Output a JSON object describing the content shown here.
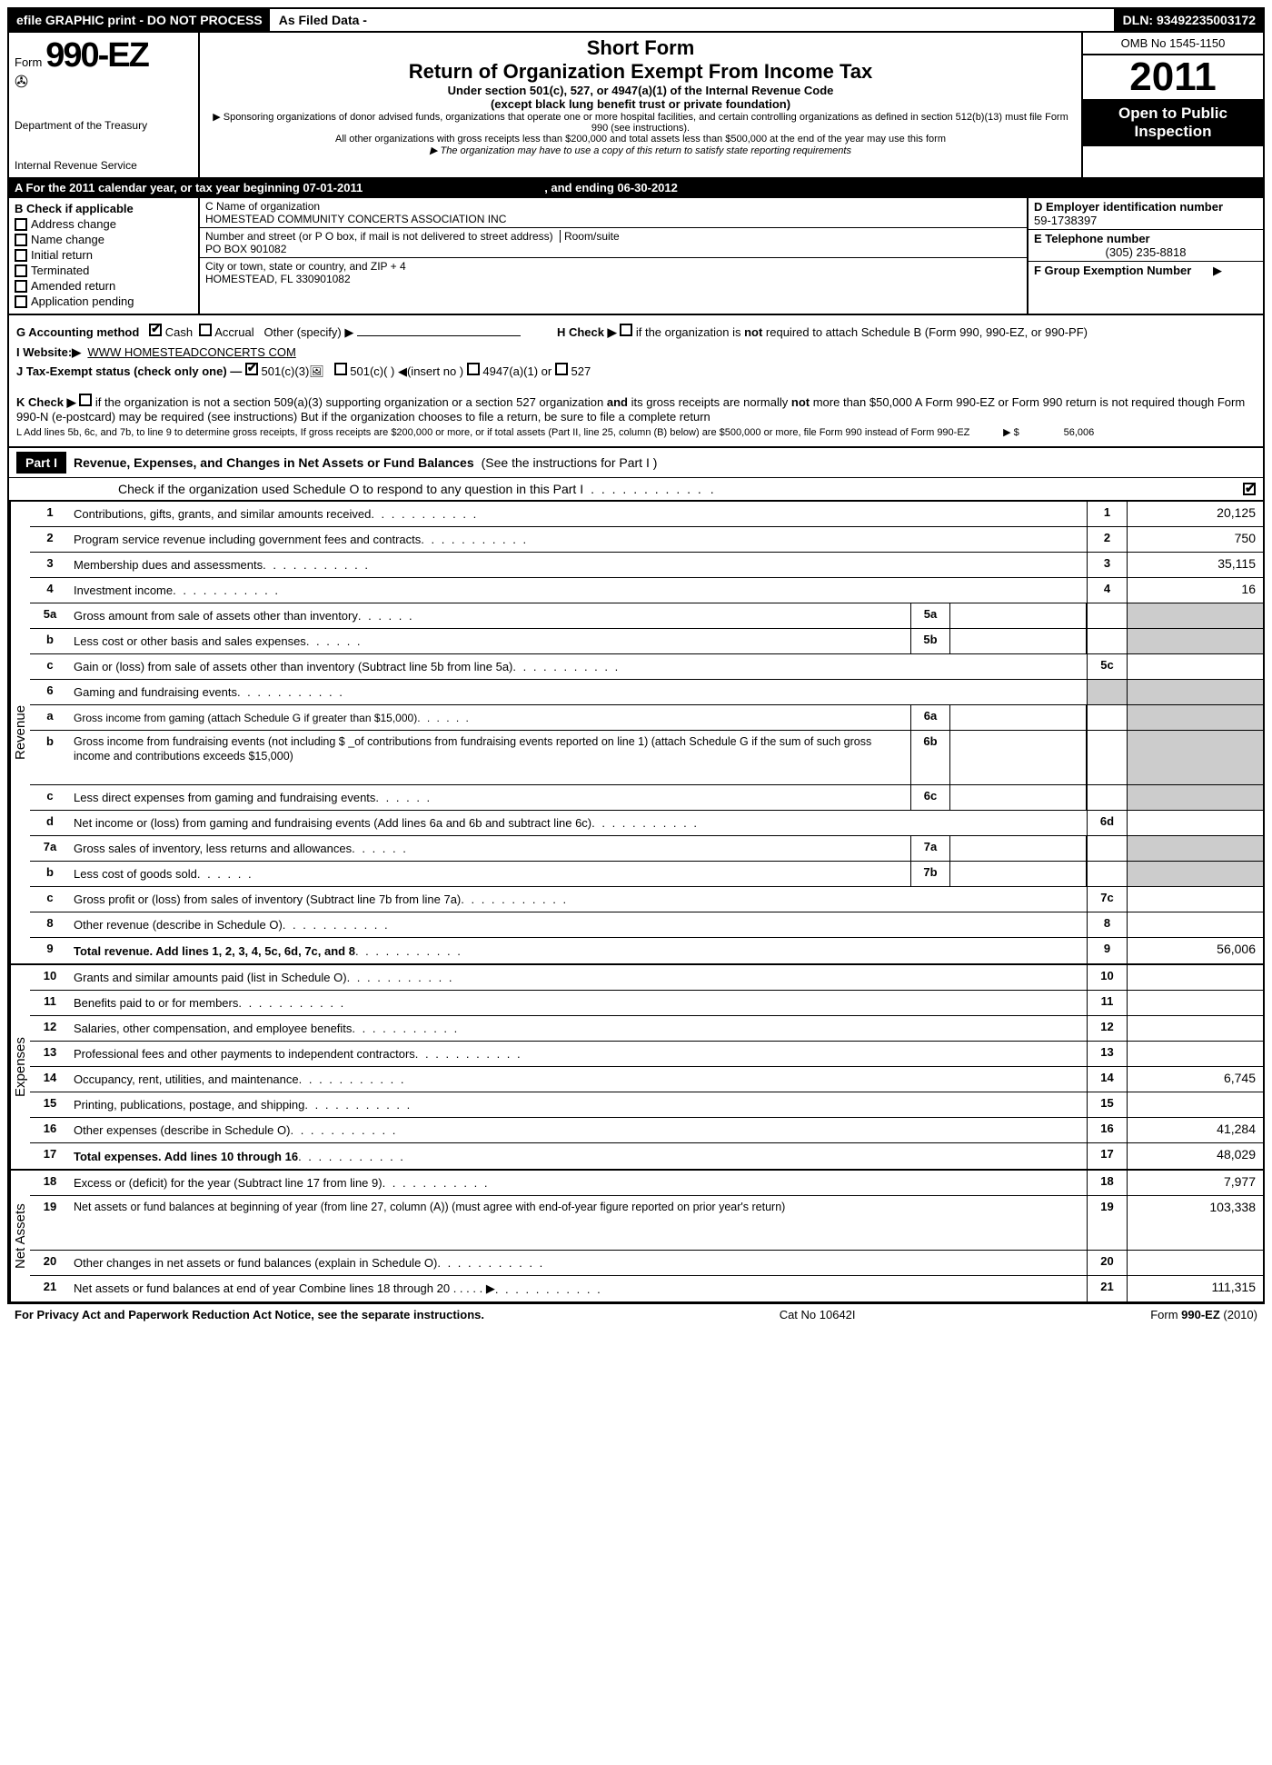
{
  "topbar": {
    "efile": "efile GRAPHIC print - DO NOT PROCESS",
    "asfiled": "As Filed Data -",
    "dln": "DLN: 93492235003172"
  },
  "header": {
    "form_prefix": "Form",
    "form_number": "990-EZ",
    "dept1": "Department of the Treasury",
    "dept2": "Internal Revenue Service",
    "short_form": "Short Form",
    "return_title": "Return of Organization Exempt From Income Tax",
    "subsection": "Under section 501(c), 527, or 4947(a)(1) of the Internal Revenue Code",
    "except": "(except black lung benefit trust or private foundation)",
    "sponsor1": "▶ Sponsoring organizations of donor advised funds, organizations that operate one or more hospital facilities, and certain controlling organizations as defined in section 512(b)(13) must file Form 990 (see instructions).",
    "sponsor2": "All other organizations with gross receipts less than $200,000 and total assets less than $500,000 at the end of the year may use this form",
    "sponsor3": "▶ The organization may have to use a copy of this return to satisfy state reporting requirements",
    "omb": "OMB No 1545-1150",
    "year": "2011",
    "open1": "Open to Public",
    "open2": "Inspection"
  },
  "rowA": {
    "text1": "A  For the 2011 calendar year, or tax year beginning 07-01-2011",
    "text2": ", and ending 06-30-2012"
  },
  "colB": {
    "title": "B  Check if applicable",
    "opts": [
      "Address change",
      "Name change",
      "Initial return",
      "Terminated",
      "Amended return",
      "Application pending"
    ]
  },
  "colC": {
    "name_label": "C Name of organization",
    "name": "HOMESTEAD COMMUNITY CONCERTS ASSOCIATION INC",
    "street_label": "Number and street (or P  O  box, if mail is not delivered to street address)",
    "room_label": "Room/suite",
    "street": "PO BOX 901082",
    "city_label": "City or town, state or country, and ZIP + 4",
    "city": "HOMESTEAD, FL  330901082"
  },
  "colD": {
    "ein_label": "D Employer identification number",
    "ein": "59-1738397",
    "tel_label": "E Telephone number",
    "tel": "(305) 235-8818",
    "grp_label": "F Group Exemption Number",
    "grp_arrow": "▶"
  },
  "misc": {
    "g": "G Accounting method",
    "g_cash": "Cash",
    "g_accrual": "Accrual",
    "g_other": "Other (specify) ▶",
    "h": "H   Check ▶",
    "h_text": "if the organization is not required to attach Schedule B (Form 990, 990-EZ, or 990-PF)",
    "i": "I Website:▶",
    "i_val": "WWW HOMESTEADCONCERTS COM",
    "j": "J Tax-Exempt status (check only one) —",
    "j1": "501(c)(3)",
    "j2": "501(c)(  ) ◀(insert no )",
    "j3": "4947(a)(1) or",
    "j4": "527",
    "k": "K Check ▶",
    "k_text": "if the organization is not a section 509(a)(3) supporting organization or a section 527 organization and its gross receipts are normally not more than   $50,000  A Form 990-EZ or Form 990 return is not required though Form 990-N (e-postcard) may be required (see instructions)  But if the   organization chooses to file a return, be sure to file a complete return",
    "l": "L Add lines 5b, 6c, and 7b, to line 9 to determine gross receipts, If gross receipts are $200,000 or more, or if total assets (Part II, line 25, column (B) below) are $500,000 or more,   file Form 990 instead of Form 990-EZ",
    "l_amt_label": "▶ $",
    "l_amt": "56,006"
  },
  "part1": {
    "label": "Part I",
    "title": "Revenue, Expenses, and Changes in Net Assets or Fund Balances",
    "title_paren": "(See the instructions for Part I )",
    "check_o": "Check if the organization used Schedule O to respond to any question in this Part I"
  },
  "sections": {
    "revenue": "Revenue",
    "expenses": "Expenses",
    "netassets": "Net Assets"
  },
  "lines": [
    {
      "n": "1",
      "desc": "Contributions, gifts, grants, and similar amounts received",
      "rn": "1",
      "rv": "20,125"
    },
    {
      "n": "2",
      "desc": "Program service revenue including government fees and contracts",
      "rn": "2",
      "rv": "750"
    },
    {
      "n": "3",
      "desc": "Membership dues and assessments",
      "rn": "3",
      "rv": "35,115"
    },
    {
      "n": "4",
      "desc": "Investment income",
      "rn": "4",
      "rv": "16"
    },
    {
      "n": "5a",
      "desc": "Gross amount from sale of assets other than inventory",
      "mn": "5a",
      "shaded_r": true
    },
    {
      "n": "b",
      "desc": "Less  cost or other basis and sales expenses",
      "mn": "5b",
      "shaded_r": true
    },
    {
      "n": "c",
      "desc": "Gain or (loss) from sale of assets other than inventory (Subtract line 5b from line 5a)",
      "rn": "5c"
    },
    {
      "n": "6",
      "desc": "Gaming and fundraising events",
      "shaded_r": true,
      "shaded_rn": true
    },
    {
      "n": "a",
      "desc": "Gross income from gaming (attach Schedule G if greater than $15,000)",
      "mn": "6a",
      "shaded_r": true,
      "small": true
    },
    {
      "n": "b",
      "desc": "Gross income from fundraising events (not including $ _of contributions from fundraising events reported on line 1) (attach Schedule G if the sum of such gross income and contributions exceeds $15,000)",
      "mn": "6b",
      "shaded_r": true,
      "multi": true
    },
    {
      "n": "c",
      "desc": "Less  direct expenses from gaming and fundraising events",
      "mn": "6c",
      "shaded_r": true
    },
    {
      "n": "d",
      "desc": "Net income or (loss) from gaming and fundraising events (Add lines 6a and 6b and subtract line 6c)",
      "rn": "6d"
    },
    {
      "n": "7a",
      "desc": "Gross sales of inventory, less returns and allowances",
      "mn": "7a",
      "shaded_r": true
    },
    {
      "n": "b",
      "desc": "Less  cost of goods sold",
      "mn": "7b",
      "shaded_r": true
    },
    {
      "n": "c",
      "desc": "Gross profit or (loss) from sales of inventory (Subtract line 7b from line 7a)",
      "rn": "7c"
    },
    {
      "n": "8",
      "desc": "Other revenue (describe in Schedule O)",
      "rn": "8"
    },
    {
      "n": "9",
      "desc": "Total revenue. Add lines 1, 2, 3, 4, 5c, 6d, 7c, and 8",
      "rn": "9",
      "rv": "56,006",
      "bold": true
    }
  ],
  "exp_lines": [
    {
      "n": "10",
      "desc": "Grants and similar amounts paid (list in Schedule O)",
      "rn": "10"
    },
    {
      "n": "11",
      "desc": "Benefits paid to or for members",
      "rn": "11"
    },
    {
      "n": "12",
      "desc": "Salaries, other compensation, and employee benefits",
      "rn": "12"
    },
    {
      "n": "13",
      "desc": "Professional fees and other payments to independent contractors",
      "rn": "13"
    },
    {
      "n": "14",
      "desc": "Occupancy, rent, utilities, and maintenance",
      "rn": "14",
      "rv": "6,745"
    },
    {
      "n": "15",
      "desc": "Printing, publications, postage, and shipping",
      "rn": "15"
    },
    {
      "n": "16",
      "desc": "Other expenses (describe in Schedule O)",
      "rn": "16",
      "rv": "41,284"
    },
    {
      "n": "17",
      "desc": "Total expenses. Add lines 10 through 16",
      "rn": "17",
      "rv": "48,029",
      "bold": true
    }
  ],
  "na_lines": [
    {
      "n": "18",
      "desc": "Excess or (deficit) for the year (Subtract line 17 from line 9)",
      "rn": "18",
      "rv": "7,977"
    },
    {
      "n": "19",
      "desc": "Net assets or fund balances at beginning of year (from line 27, column (A)) (must agree with end-of-year figure reported on prior year's return)",
      "rn": "19",
      "rv": "103,338",
      "multi": true
    },
    {
      "n": "20",
      "desc": "Other changes in net assets or fund balances (explain in Schedule O)",
      "rn": "20"
    },
    {
      "n": "21",
      "desc": "Net assets or fund balances at end of year  Combine lines 18 through 20     .   .   .   .   . ▶",
      "rn": "21",
      "rv": "111,315"
    }
  ],
  "footer": {
    "left": "For Privacy Act and Paperwork Reduction Act Notice, see the separate instructions.",
    "mid": "Cat  No  10642I",
    "right": "Form 990-EZ (2010)"
  },
  "colors": {
    "black": "#000000",
    "white": "#ffffff",
    "shade": "#cccccc"
  }
}
